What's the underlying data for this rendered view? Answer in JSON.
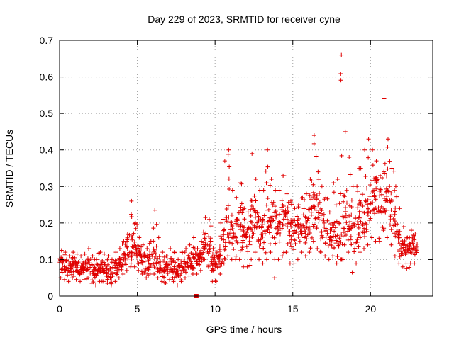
{
  "chart_data": {
    "type": "scatter",
    "title": "Day 229 of 2023, SRMTID for receiver cyne",
    "xlabel": "GPS time / hours",
    "ylabel": "SRMTID / TECUs",
    "xlim": [
      0,
      24
    ],
    "ylim": [
      0,
      0.7
    ],
    "xticks": [
      0,
      5,
      10,
      15,
      20
    ],
    "yticks": [
      0,
      0.1,
      0.2,
      0.3,
      0.4,
      0.5,
      0.6,
      0.7
    ],
    "xtick_labels": [
      "0",
      "5",
      "10",
      "15",
      "20"
    ],
    "ytick_labels": [
      "0",
      "0.1",
      "0.2",
      "0.3",
      "0.4",
      "0.5",
      "0.6",
      "0.7"
    ],
    "grid": true,
    "marker": "+",
    "color": "#e00000",
    "outlier_points": [
      {
        "x": 8.8,
        "y": 0.0,
        "marker": "square"
      }
    ],
    "series": [
      {
        "name": "SRMTID",
        "x": [
          0.0,
          0.25,
          0.5,
          0.75,
          1.0,
          1.25,
          1.5,
          1.75,
          2.0,
          2.25,
          2.5,
          2.75,
          3.0,
          3.25,
          3.5,
          3.75,
          4.0,
          4.25,
          4.5,
          4.75,
          5.0,
          5.25,
          5.5,
          5.75,
          6.0,
          6.25,
          6.5,
          6.75,
          7.0,
          7.25,
          7.5,
          7.75,
          8.0,
          8.25,
          8.5,
          8.75,
          9.0,
          9.25,
          9.5,
          9.75,
          10.0,
          10.25,
          10.5,
          10.75,
          11.0,
          11.25,
          11.5,
          11.75,
          12.0,
          12.25,
          12.5,
          12.75,
          13.0,
          13.25,
          13.5,
          13.75,
          14.0,
          14.25,
          14.5,
          14.75,
          15.0,
          15.25,
          15.5,
          15.75,
          16.0,
          16.25,
          16.5,
          16.75,
          17.0,
          17.25,
          17.5,
          17.75,
          18.0,
          18.25,
          18.5,
          18.75,
          19.0,
          19.25,
          19.5,
          19.75,
          20.0,
          20.25,
          20.5,
          20.75,
          21.0,
          21.25,
          21.5,
          21.75,
          22.0,
          22.25,
          22.5,
          22.75
        ],
        "median": [
          0.09,
          0.085,
          0.08,
          0.09,
          0.08,
          0.075,
          0.08,
          0.085,
          0.07,
          0.065,
          0.08,
          0.075,
          0.07,
          0.065,
          0.08,
          0.09,
          0.1,
          0.12,
          0.13,
          0.125,
          0.12,
          0.1,
          0.09,
          0.095,
          0.1,
          0.09,
          0.08,
          0.075,
          0.085,
          0.08,
          0.07,
          0.08,
          0.085,
          0.09,
          0.095,
          0.1,
          0.11,
          0.15,
          0.14,
          0.09,
          0.08,
          0.11,
          0.17,
          0.2,
          0.19,
          0.18,
          0.2,
          0.17,
          0.16,
          0.2,
          0.23,
          0.18,
          0.17,
          0.2,
          0.22,
          0.2,
          0.19,
          0.2,
          0.21,
          0.17,
          0.16,
          0.18,
          0.2,
          0.19,
          0.2,
          0.25,
          0.23,
          0.2,
          0.18,
          0.16,
          0.17,
          0.15,
          0.16,
          0.22,
          0.2,
          0.17,
          0.18,
          0.21,
          0.22,
          0.24,
          0.28,
          0.27,
          0.26,
          0.3,
          0.28,
          0.24,
          0.2,
          0.15,
          0.13,
          0.12,
          0.14,
          0.13
        ],
        "max": [
          0.125,
          0.12,
          0.11,
          0.12,
          0.115,
          0.11,
          0.115,
          0.13,
          0.11,
          0.1,
          0.12,
          0.115,
          0.11,
          0.1,
          0.12,
          0.13,
          0.15,
          0.17,
          0.26,
          0.2,
          0.16,
          0.14,
          0.13,
          0.15,
          0.235,
          0.16,
          0.12,
          0.11,
          0.13,
          0.12,
          0.1,
          0.12,
          0.13,
          0.14,
          0.16,
          0.13,
          0.15,
          0.215,
          0.21,
          0.13,
          0.12,
          0.2,
          0.37,
          0.4,
          0.29,
          0.27,
          0.31,
          0.24,
          0.23,
          0.39,
          0.32,
          0.29,
          0.29,
          0.4,
          0.32,
          0.29,
          0.29,
          0.33,
          0.28,
          0.26,
          0.24,
          0.25,
          0.27,
          0.28,
          0.32,
          0.44,
          0.34,
          0.3,
          0.27,
          0.23,
          0.31,
          0.32,
          0.66,
          0.45,
          0.38,
          0.3,
          0.3,
          0.35,
          0.4,
          0.43,
          0.4,
          0.37,
          0.33,
          0.54,
          0.43,
          0.35,
          0.3,
          0.24,
          0.19,
          0.16,
          0.18,
          0.17
        ],
        "min": [
          0.05,
          0.045,
          0.04,
          0.05,
          0.045,
          0.04,
          0.045,
          0.05,
          0.035,
          0.03,
          0.04,
          0.04,
          0.035,
          0.03,
          0.04,
          0.05,
          0.06,
          0.07,
          0.08,
          0.08,
          0.07,
          0.06,
          0.05,
          0.06,
          0.06,
          0.05,
          0.04,
          0.035,
          0.045,
          0.04,
          0.03,
          0.04,
          0.05,
          0.055,
          0.06,
          0.06,
          0.07,
          0.1,
          0.08,
          0.04,
          0.04,
          0.06,
          0.09,
          0.11,
          0.1,
          0.1,
          0.1,
          0.08,
          0.08,
          0.1,
          0.12,
          0.1,
          0.09,
          0.1,
          0.12,
          0.05,
          0.1,
          0.11,
          0.12,
          0.09,
          0.09,
          0.1,
          0.12,
          0.11,
          0.12,
          0.15,
          0.13,
          0.12,
          0.11,
          0.1,
          0.11,
          0.09,
          0.1,
          0.14,
          0.12,
          0.065,
          0.09,
          0.12,
          0.13,
          0.14,
          0.16,
          0.15,
          0.15,
          0.18,
          0.16,
          0.14,
          0.11,
          0.09,
          0.08,
          0.075,
          0.09,
          0.09
        ],
        "points_per_step": 14
      }
    ]
  }
}
